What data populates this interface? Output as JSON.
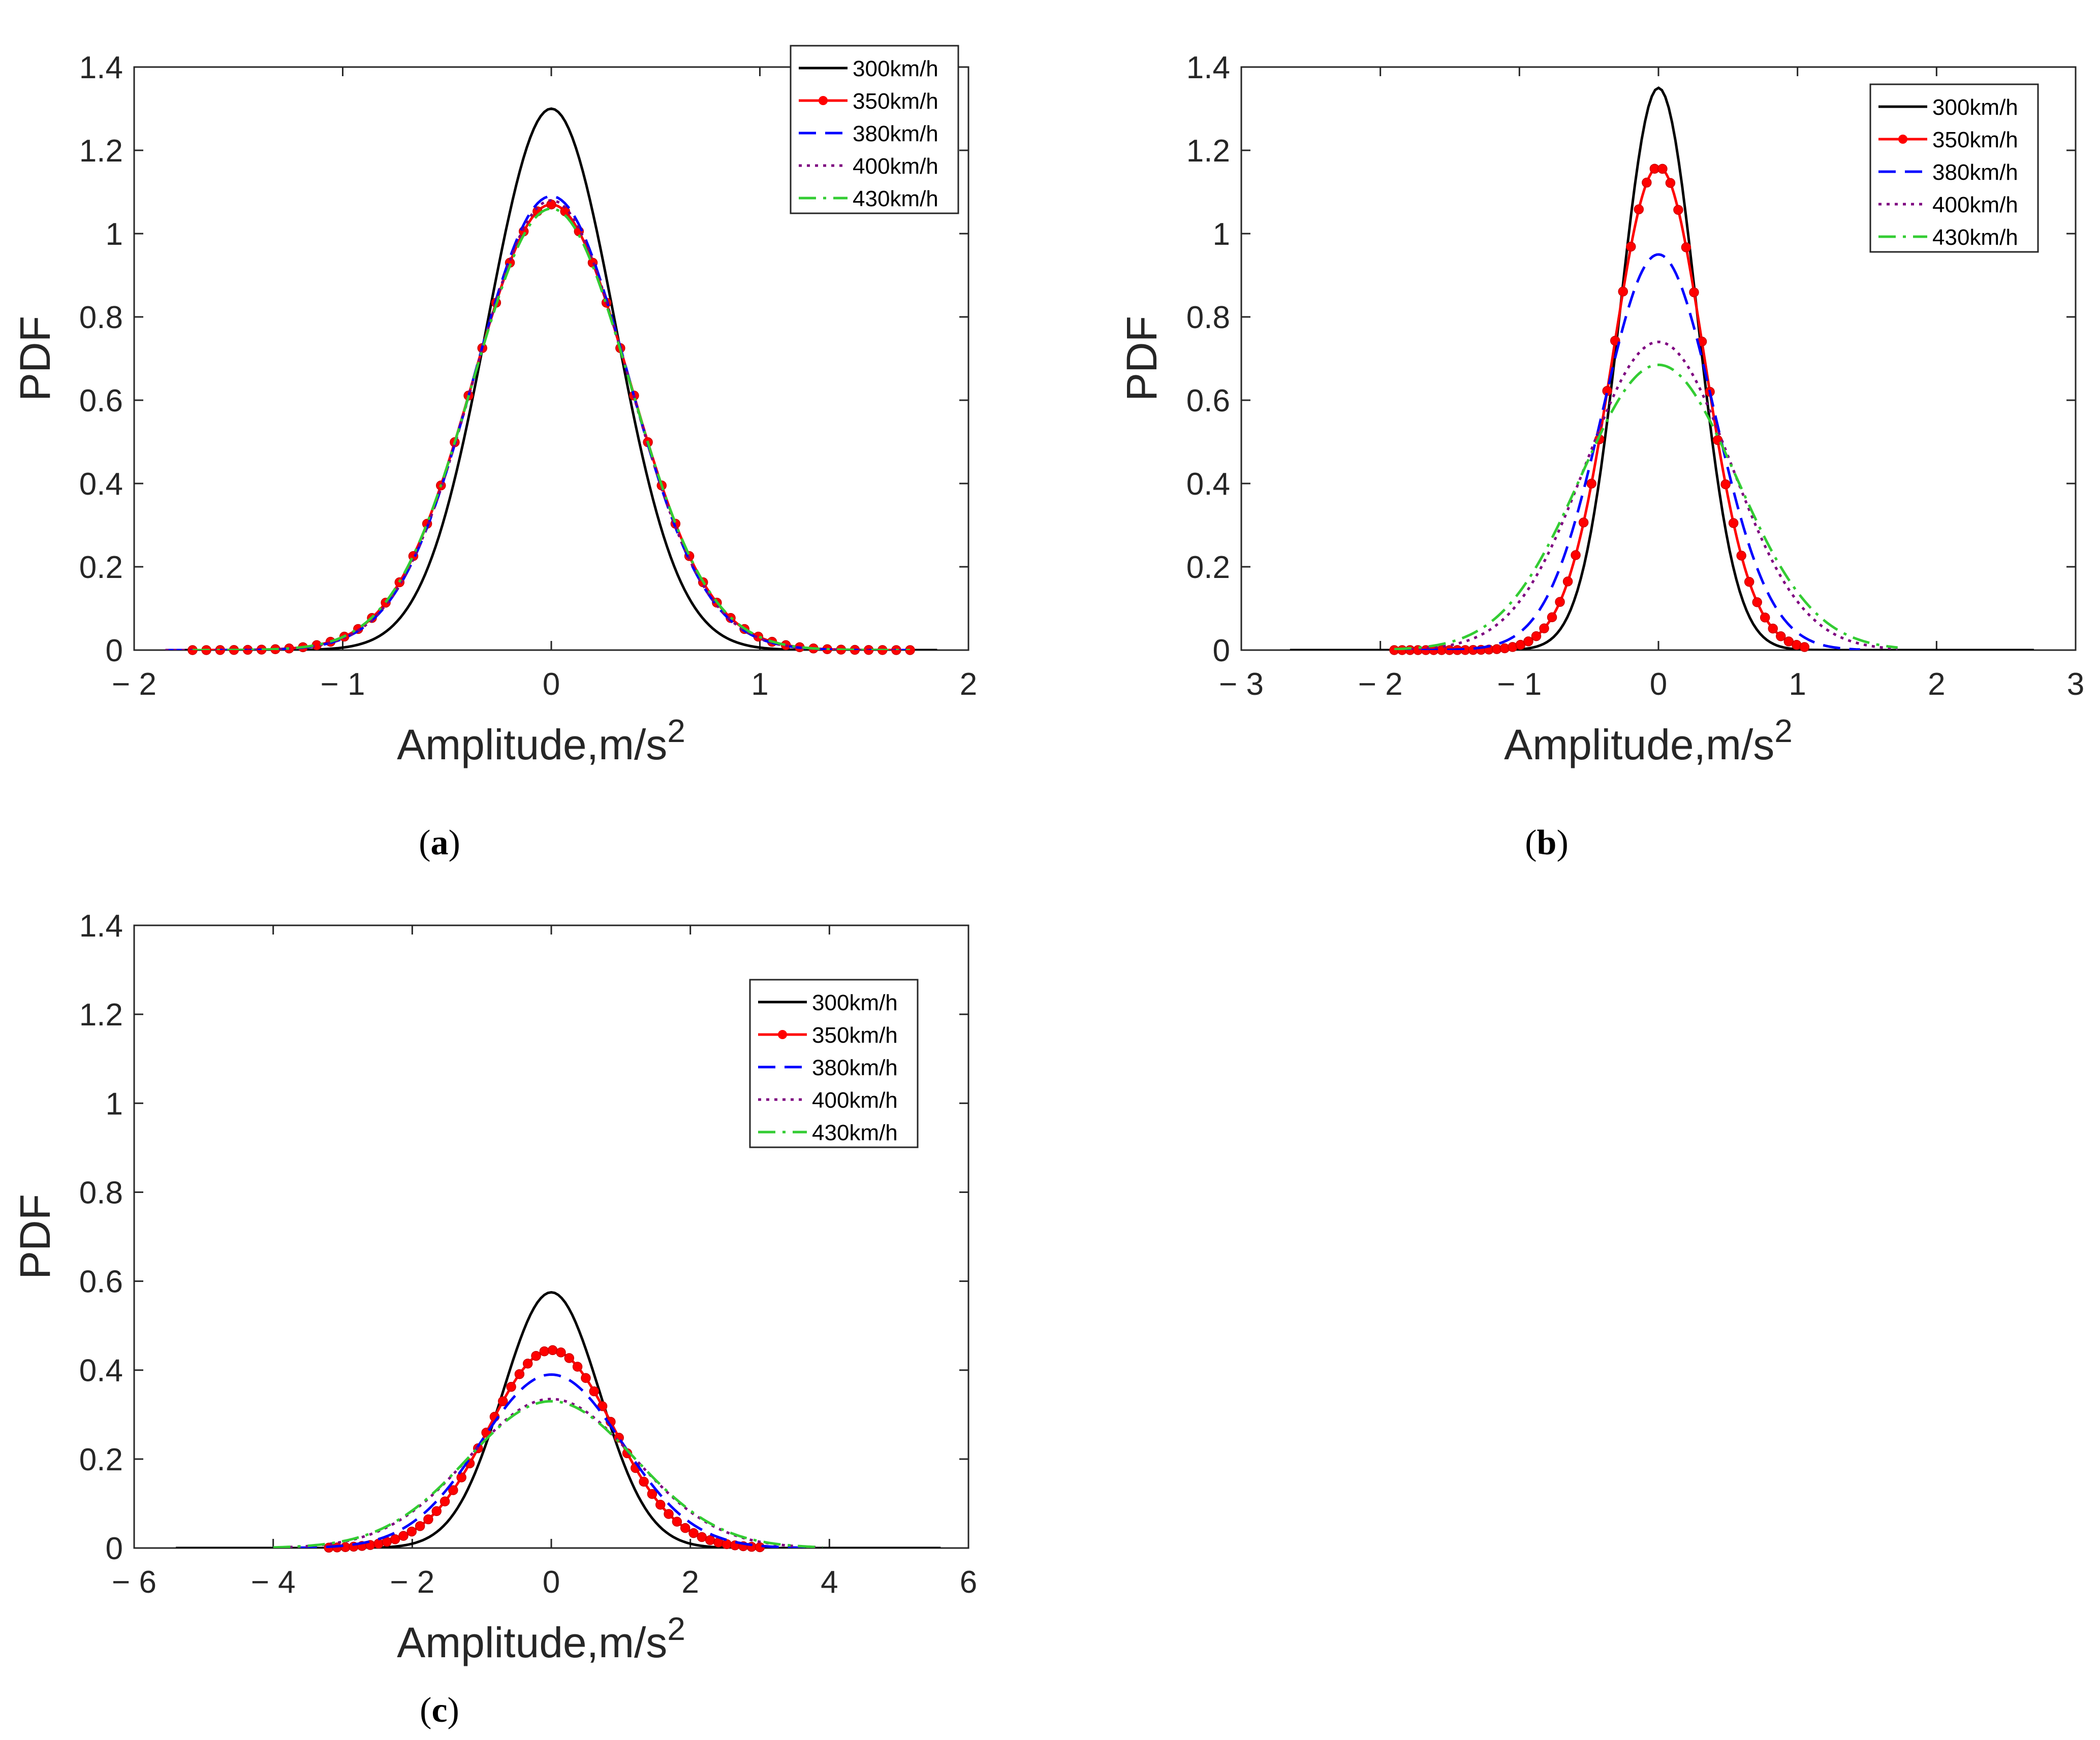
{
  "figure": {
    "background": "#ffffff"
  },
  "series_styles": [
    {
      "name": "300km/h",
      "color": "#000000",
      "dash": "",
      "marker": false
    },
    {
      "name": "350km/h",
      "color": "#ff0000",
      "dash": "",
      "marker": true
    },
    {
      "name": "380km/h",
      "color": "#0000ff",
      "dash": "dashed",
      "marker": false
    },
    {
      "name": "400km/h",
      "color": "#7e0080",
      "dash": "dotted",
      "marker": false
    },
    {
      "name": "430km/h",
      "color": "#33cc33",
      "dash": "dashdot",
      "marker": false
    }
  ],
  "chart_data": [
    {
      "id": "a",
      "type": "line",
      "caption": {
        "open": "(",
        "letter": "a",
        "close": ")"
      },
      "xlabel": "Amplitude,m/s",
      "xlabel_superscript": "2",
      "ylabel": "PDF",
      "xlim": [
        -2,
        2
      ],
      "ylim": [
        0,
        1.4
      ],
      "xticks": [
        -2,
        -1,
        0,
        1,
        2
      ],
      "xtick_labels": [
        "− 2",
        "− 1",
        "0",
        "1",
        "2"
      ],
      "yticks": [
        0,
        0.2,
        0.4,
        0.6,
        0.8,
        1,
        1.2,
        1.4
      ],
      "ytick_labels": [
        "0",
        "0.2",
        "0.4",
        "0.6",
        "0.8",
        "1",
        "1.2",
        "1.4"
      ],
      "legend": {
        "location": "top-right"
      },
      "series": [
        {
          "name": "300km/h",
          "peak": 1.3,
          "sigma": 0.305,
          "x_range": [
            -1.85,
            1.85
          ]
        },
        {
          "name": "350km/h",
          "peak": 1.07,
          "sigma": 0.375,
          "x_range": [
            -1.72,
            1.72
          ]
        },
        {
          "name": "380km/h",
          "peak": 1.09,
          "sigma": 0.368,
          "x_range": [
            -1.85,
            1.72
          ]
        },
        {
          "name": "400km/h",
          "peak": 1.08,
          "sigma": 0.37,
          "x_range": [
            -1.85,
            1.72
          ]
        },
        {
          "name": "430km/h",
          "peak": 1.06,
          "sigma": 0.377,
          "x_range": [
            -1.72,
            1.72
          ]
        }
      ]
    },
    {
      "id": "b",
      "type": "line",
      "caption": {
        "open": "(",
        "letter": "b",
        "close": ")"
      },
      "xlabel": "Amplitude,m/s",
      "xlabel_superscript": "2",
      "ylabel": "PDF",
      "xlim": [
        -3,
        3
      ],
      "ylim": [
        0,
        1.4
      ],
      "xticks": [
        -3,
        -2,
        -1,
        0,
        1,
        2,
        3
      ],
      "xtick_labels": [
        "− 3",
        "− 2",
        "− 1",
        "0",
        "1",
        "2",
        "3"
      ],
      "yticks": [
        0,
        0.2,
        0.4,
        0.6,
        0.8,
        1,
        1.2,
        1.4
      ],
      "ytick_labels": [
        "0",
        "0.2",
        "0.4",
        "0.6",
        "0.8",
        "1",
        "1.2",
        "1.4"
      ],
      "legend": {
        "location": "top-right"
      },
      "series": [
        {
          "name": "300km/h",
          "peak": 1.35,
          "sigma": 0.275,
          "x_range": [
            -2.65,
            2.7
          ]
        },
        {
          "name": "350km/h",
          "peak": 1.16,
          "sigma": 0.33,
          "x_range": [
            -1.9,
            1.05
          ]
        },
        {
          "name": "380km/h",
          "peak": 0.95,
          "sigma": 0.4,
          "x_range": [
            -1.9,
            1.45
          ]
        },
        {
          "name": "400km/h",
          "peak": 0.74,
          "sigma": 0.52,
          "x_range": [
            -1.9,
            1.72
          ]
        },
        {
          "name": "430km/h",
          "peak": 0.685,
          "sigma": 0.56,
          "x_range": [
            -1.9,
            1.72
          ]
        }
      ]
    },
    {
      "id": "c",
      "type": "line",
      "caption": {
        "open": "(",
        "letter": "c",
        "close": ")"
      },
      "xlabel": "Amplitude,m/s",
      "xlabel_superscript": "2",
      "ylabel": "PDF",
      "xlim": [
        -6,
        6
      ],
      "ylim": [
        0,
        1.4
      ],
      "xticks": [
        -6,
        -4,
        -2,
        0,
        2,
        4,
        6
      ],
      "xtick_labels": [
        "− 6",
        "− 4",
        "− 2",
        "0",
        "2",
        "4",
        "6"
      ],
      "yticks": [
        0,
        0.2,
        0.4,
        0.6,
        0.8,
        1,
        1.2,
        1.4
      ],
      "ytick_labels": [
        "0",
        "0.2",
        "0.4",
        "0.6",
        "0.8",
        "1",
        "1.2",
        "1.4"
      ],
      "legend": {
        "location": "top-right"
      },
      "series": [
        {
          "name": "300km/h",
          "peak": 0.575,
          "sigma": 0.7,
          "x_range": [
            -5.4,
            5.6
          ]
        },
        {
          "name": "350km/h",
          "peak": 0.445,
          "sigma": 0.9,
          "x_range": [
            -3.2,
            3.0
          ]
        },
        {
          "name": "380km/h",
          "peak": 0.39,
          "sigma": 1.02,
          "x_range": [
            -4.0,
            3.8
          ]
        },
        {
          "name": "400km/h",
          "peak": 0.335,
          "sigma": 1.19,
          "x_range": [
            -4.0,
            3.8
          ]
        },
        {
          "name": "430km/h",
          "peak": 0.33,
          "sigma": 1.21,
          "x_range": [
            -4.0,
            3.9
          ]
        }
      ]
    }
  ]
}
